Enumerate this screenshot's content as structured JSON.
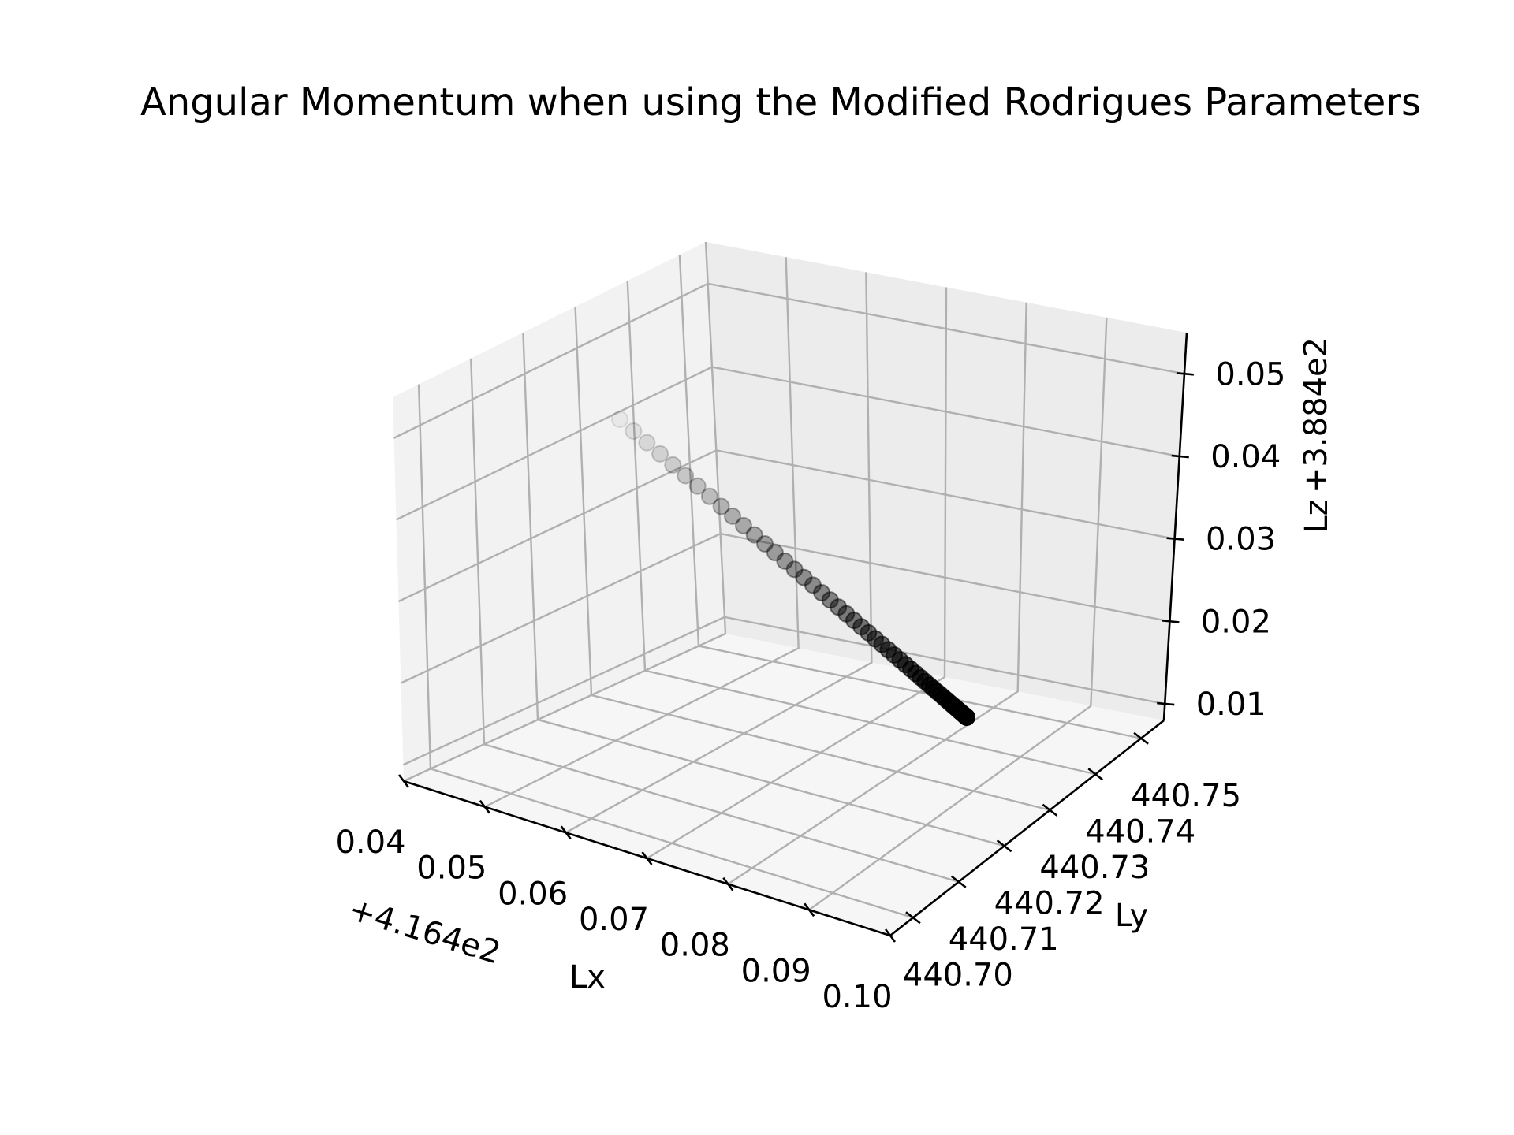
{
  "chart_data": {
    "type": "scatter",
    "projection": "3d",
    "title": "Angular Momentum when using the Modified Rodrigues Parameters",
    "xlabel": "Lx",
    "ylabel": "Ly",
    "zlabel": "Lz",
    "x_offset": "+4.164e2",
    "z_offset": "+3.884e2",
    "x_ticks": [
      "0.04",
      "0.05",
      "0.06",
      "0.07",
      "0.08",
      "0.09",
      "0.10"
    ],
    "y_ticks": [
      "440.70",
      "440.71",
      "440.72",
      "440.73",
      "440.74",
      "440.75"
    ],
    "z_ticks": [
      "0.01",
      "0.02",
      "0.03",
      "0.04",
      "0.05"
    ],
    "xlim": [
      416.44,
      416.5
    ],
    "ylim": [
      440.695,
      440.755
    ],
    "zlim": [
      388.408,
      388.455
    ],
    "grid": true,
    "marker_color": "#000000",
    "point_count": 56,
    "series_start": {
      "x": 416.4472,
      "y": 440.735,
      "z": 388.4479
    },
    "series_end": {
      "x": 416.4968,
      "y": 440.7462,
      "z": 388.414
    },
    "color_gradient": "light (first point, upper-left) to black (last point, lower-right)"
  }
}
